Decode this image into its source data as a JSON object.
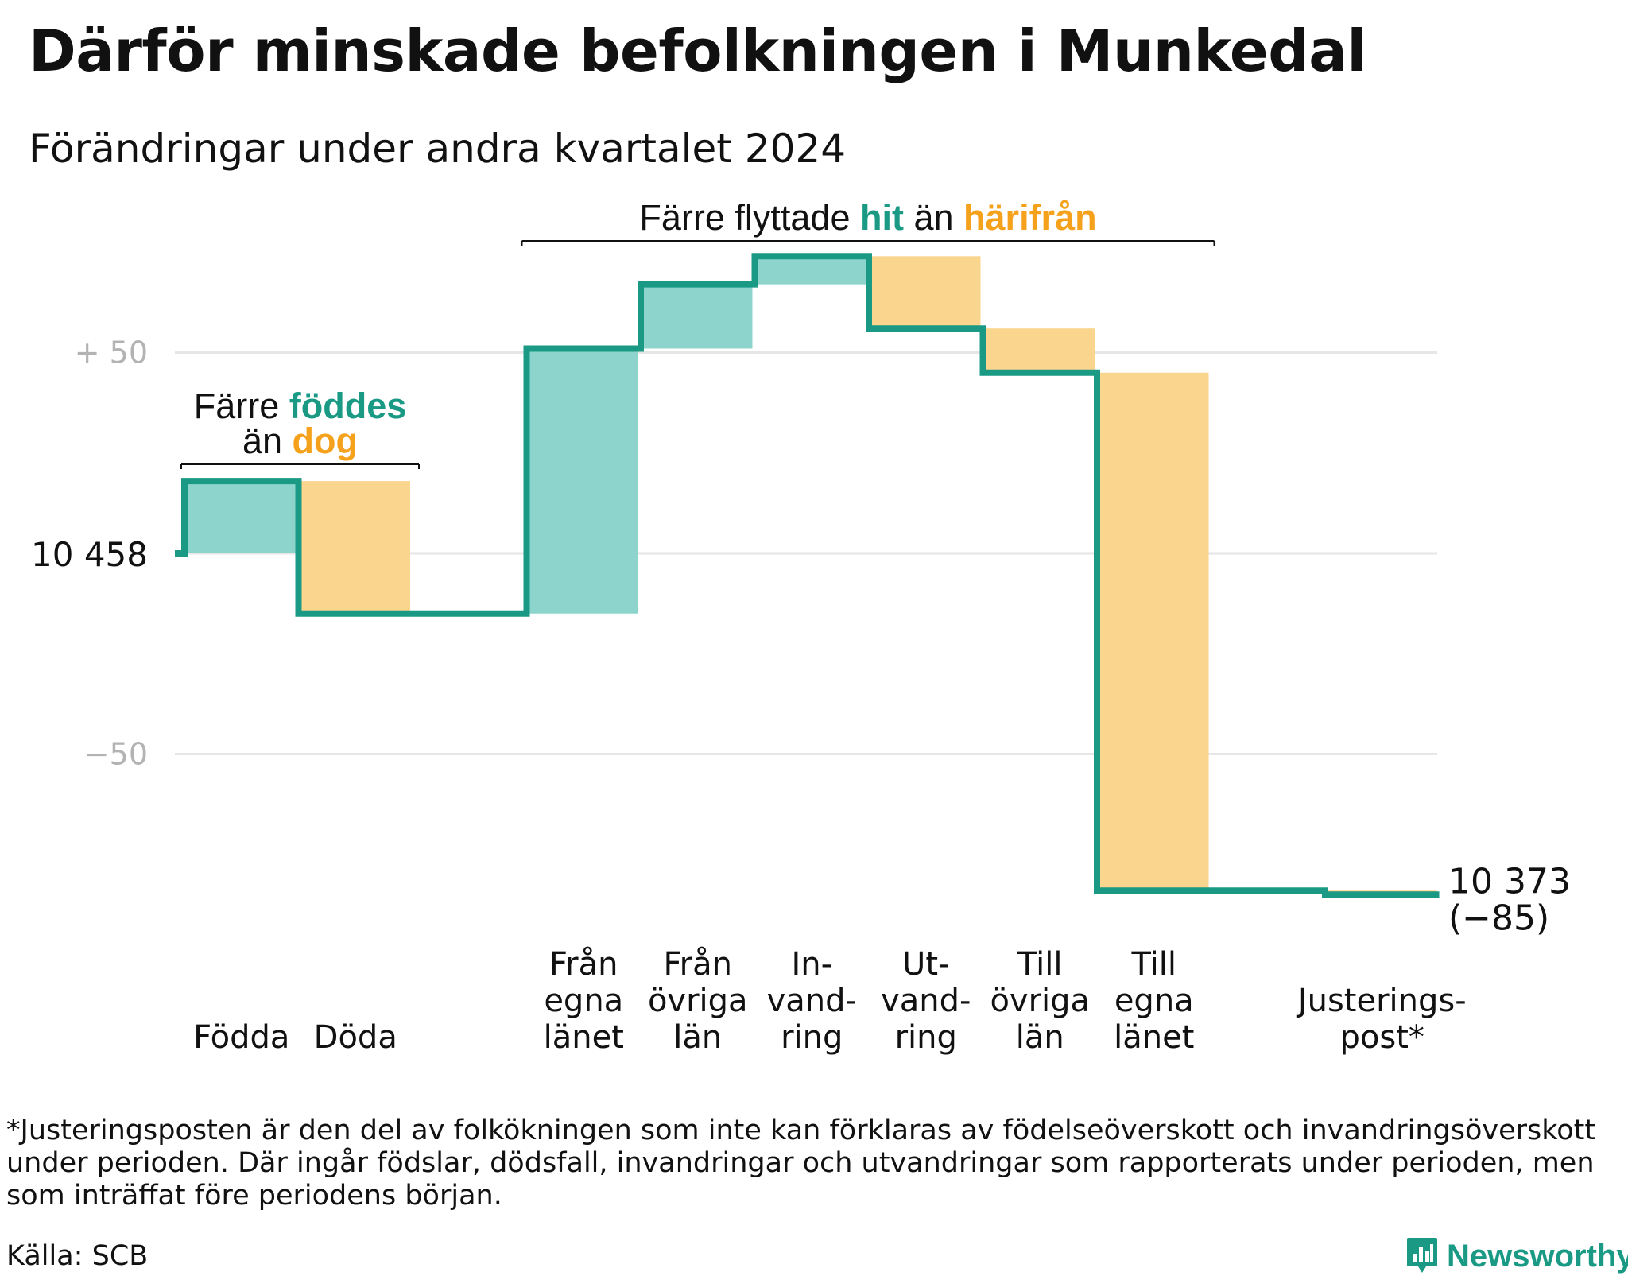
{
  "title": "Därför minskade befolkningen i Munkedal",
  "subtitle": "Förändringar under andra kvartalet 2024",
  "footnote": "*Justeringsposten är den del av folkökningen som inte kan förklaras av födelseöverskott och invandringsöverskott under perioden. Där ingår födslar, dödsfall, invandringar och utvandringar som rapporterats under perioden, men som inträffat före periodens början.",
  "source": "Källa: SCB",
  "brand": "Newsworthy",
  "colors": {
    "line": "#1a9a84",
    "increase": "#8dd5cc",
    "decrease": "#f9d58e",
    "teal_text": "#1a9a84",
    "orange_text": "#f5a11c",
    "grid": "#e6e6e6",
    "axis_text": "#b3b3b3"
  },
  "chart_data": {
    "type": "waterfall",
    "baseline": 10458,
    "baseline_label": "10 458",
    "end_value": 10373,
    "end_label": "10 373",
    "change_label": "(−85)",
    "ylim": [
      -87,
      75
    ],
    "yticks": [
      {
        "value": 50,
        "label": "+ 50"
      },
      {
        "value": 0,
        "label": ""
      },
      {
        "value": -50,
        "label": "−50"
      }
    ],
    "grid": true,
    "steps": [
      {
        "name": "Födda",
        "label_lines": [
          "Födda"
        ],
        "delta": 18,
        "color": "increase"
      },
      {
        "name": "Döda",
        "label_lines": [
          "Döda"
        ],
        "delta": -33,
        "color": "decrease"
      },
      {
        "name": "",
        "label_lines": [],
        "delta": 0,
        "color": "none"
      },
      {
        "name": "Från egna länet",
        "label_lines": [
          "Från",
          "egna",
          "länet"
        ],
        "delta": 66,
        "color": "increase"
      },
      {
        "name": "Från övriga län",
        "label_lines": [
          "Från",
          "övriga",
          "län"
        ],
        "delta": 16,
        "color": "increase"
      },
      {
        "name": "Invandring",
        "label_lines": [
          "In-",
          "vand-",
          "ring"
        ],
        "delta": 7,
        "color": "increase"
      },
      {
        "name": "Utvandring",
        "label_lines": [
          "Ut-",
          "vand-",
          "ring"
        ],
        "delta": -18,
        "color": "decrease"
      },
      {
        "name": "Till övriga län",
        "label_lines": [
          "Till",
          "övriga",
          "län"
        ],
        "delta": -11,
        "color": "decrease"
      },
      {
        "name": "Till egna länet",
        "label_lines": [
          "Till",
          "egna",
          "länet"
        ],
        "delta": -129,
        "color": "decrease"
      },
      {
        "name": "",
        "label_lines": [],
        "delta": 0,
        "color": "none"
      },
      {
        "name": "Justeringspost*",
        "label_lines": [
          "Justerings-",
          "post*"
        ],
        "delta": -1,
        "color": "decrease"
      }
    ],
    "annotations": [
      {
        "id": "births",
        "line1_prefix": "Färre ",
        "line1_highlight": "föddes",
        "line2_prefix": "än ",
        "line2_highlight": "dog",
        "spans_steps": [
          0,
          1
        ]
      },
      {
        "id": "migration",
        "prefix": "Färre flyttade ",
        "highlight1": "hit",
        "middle": " än ",
        "highlight2": "härifrån",
        "spans_steps": [
          3,
          8
        ]
      }
    ]
  }
}
